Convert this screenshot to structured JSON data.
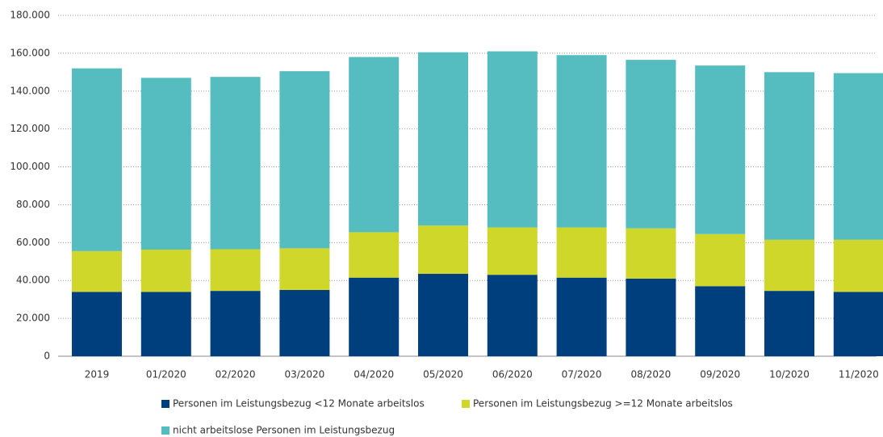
{
  "chart_data": {
    "type": "stacked_bar",
    "categories": [
      "2019",
      "01/2020",
      "02/2020",
      "03/2020",
      "04/2020",
      "05/2020",
      "06/2020",
      "07/2020",
      "08/2020",
      "09/2020",
      "10/2020",
      "11/2020"
    ],
    "series": [
      {
        "name": "Personen im Leistungsbezug <12 Monate arbeitslos",
        "color": "#003f7d",
        "values": [
          34000,
          34000,
          34500,
          35000,
          41500,
          43500,
          43000,
          41500,
          41000,
          37000,
          34500,
          34000
        ]
      },
      {
        "name": "Personen im Leistungsbezug >=12 Monate arbeitslos",
        "color": "#cfd72b",
        "values": [
          21500,
          22300,
          22000,
          22000,
          24000,
          25500,
          25000,
          26500,
          26500,
          27500,
          27000,
          27500
        ]
      },
      {
        "name": "nicht arbeitslose Personen im Leistungsbezug",
        "color": "#55bcc0",
        "values": [
          96500,
          90700,
          91000,
          93500,
          92500,
          91500,
          93000,
          91000,
          89000,
          89000,
          88500,
          88000
        ]
      }
    ],
    "ylim": [
      0,
      180000
    ],
    "yticks": [
      0,
      {
        "value": 20000,
        "label": "20.000"
      },
      {
        "value": 40000,
        "label": "40.000"
      },
      {
        "value": 60000,
        "label": "60.000"
      },
      {
        "value": 80000,
        "label": "80.000"
      },
      {
        "value": 100000,
        "label": "100.000"
      },
      {
        "value": 120000,
        "label": "120.000"
      },
      {
        "value": 140000,
        "label": "140.000"
      },
      {
        "value": 160000,
        "label": "160.000"
      },
      {
        "value": 180000,
        "label": "180.000"
      }
    ],
    "grid": true
  }
}
